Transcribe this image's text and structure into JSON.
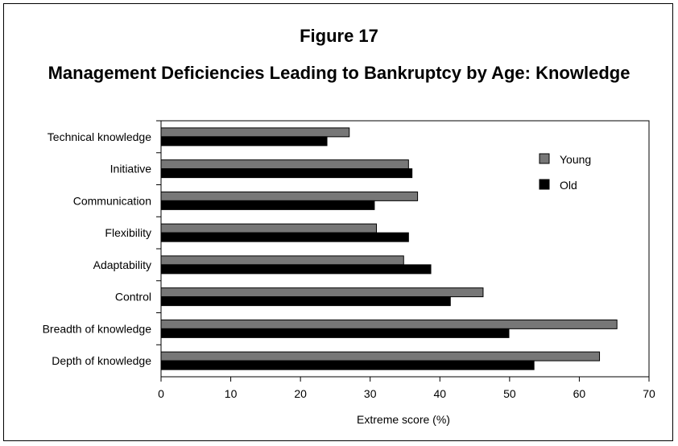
{
  "figure_number": "Figure 17",
  "chart_data": {
    "type": "bar",
    "orientation": "horizontal",
    "title": "Management Deficiencies Leading to Bankruptcy by Age: Knowledge",
    "xlabel": "Extreme score (%)",
    "ylabel": "",
    "xlim": [
      0,
      70
    ],
    "xticks": [
      0,
      10,
      20,
      30,
      40,
      50,
      60,
      70
    ],
    "legend_position": "top-right",
    "categories": [
      "Technical knowledge",
      "Initiative",
      "Communication",
      "Flexibility",
      "Adaptability",
      "Control",
      "Breadth of knowledge",
      "Depth of knowledge"
    ],
    "series": [
      {
        "name": "Young",
        "color": "#777777",
        "values": [
          27,
          35.5,
          36.8,
          30.9,
          34.8,
          46.2,
          65.4,
          62.9
        ]
      },
      {
        "name": "Old",
        "color": "#000000",
        "values": [
          23.8,
          36,
          30.6,
          35.5,
          38.7,
          41.5,
          49.9,
          53.5
        ]
      }
    ]
  }
}
